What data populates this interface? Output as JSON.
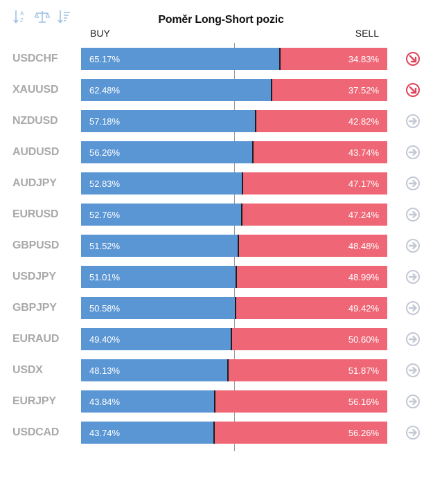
{
  "title": "Poměr Long-Short pozic",
  "buy_label": "BUY",
  "sell_label": "SELL",
  "toolbar": {
    "icons": [
      "sort-alphabetical-icon",
      "scale-icon",
      "sort-descending-icon"
    ]
  },
  "colors": {
    "buy": "#5b96d4",
    "sell": "#ef6776",
    "bearish": "#e0445a",
    "neutral": "#c3c8d4"
  },
  "chart_data": {
    "type": "bar",
    "orientation": "horizontal-stacked",
    "categories": [
      "USDCHF",
      "XAUUSD",
      "NZDUSD",
      "AUDUSD",
      "AUDJPY",
      "EURUSD",
      "GBPUSD",
      "USDJPY",
      "GBPJPY",
      "EURAUD",
      "USDX",
      "EURJPY",
      "USDCAD"
    ],
    "series": [
      {
        "name": "BUY",
        "values": [
          65.17,
          62.48,
          57.18,
          56.26,
          52.83,
          52.76,
          51.52,
          51.01,
          50.58,
          49.4,
          48.13,
          43.84,
          43.74
        ]
      },
      {
        "name": "SELL",
        "values": [
          34.83,
          37.52,
          42.82,
          43.74,
          47.17,
          47.24,
          48.48,
          48.99,
          49.42,
          50.6,
          51.87,
          56.16,
          56.26
        ]
      }
    ],
    "buy_labels": [
      "65.17%",
      "62.48%",
      "57.18%",
      "56.26%",
      "52.83%",
      "52.76%",
      "51.52%",
      "51.01%",
      "50.58%",
      "49.40%",
      "48.13%",
      "43.84%",
      "43.74%"
    ],
    "sell_labels": [
      "34.83%",
      "37.52%",
      "42.82%",
      "43.74%",
      "47.17%",
      "47.24%",
      "48.48%",
      "48.99%",
      "49.42%",
      "50.60%",
      "51.87%",
      "56.16%",
      "56.26%"
    ],
    "signals": [
      "bearish",
      "bearish",
      "neutral",
      "neutral",
      "neutral",
      "neutral",
      "neutral",
      "neutral",
      "neutral",
      "neutral",
      "neutral",
      "neutral",
      "neutral"
    ],
    "xlim": [
      0,
      100
    ],
    "reference_line": 50
  }
}
